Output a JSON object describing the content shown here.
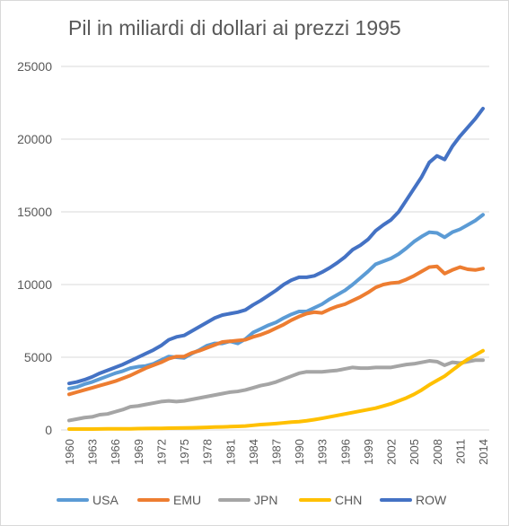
{
  "chart_data": {
    "type": "line",
    "title": "Pil in miliardi di dollari ai prezzi 1995",
    "xlabel": "",
    "ylabel": "",
    "ylim": [
      0,
      25000
    ],
    "yticks": [
      "0",
      "5000",
      "10000",
      "15000",
      "20000",
      "25000"
    ],
    "xticks": [
      "1960",
      "1963",
      "1966",
      "1969",
      "1972",
      "1975",
      "1978",
      "1981",
      "1984",
      "1987",
      "1990",
      "1993",
      "1996",
      "1999",
      "2002",
      "2005",
      "2008",
      "2011",
      "2014"
    ],
    "grid": "horizontal",
    "legend_position": "bottom",
    "x": [
      1960,
      1961,
      1962,
      1963,
      1964,
      1965,
      1966,
      1967,
      1968,
      1969,
      1970,
      1971,
      1972,
      1973,
      1974,
      1975,
      1976,
      1977,
      1978,
      1979,
      1980,
      1981,
      1982,
      1983,
      1984,
      1985,
      1986,
      1987,
      1988,
      1989,
      1990,
      1991,
      1992,
      1993,
      1994,
      1995,
      1996,
      1997,
      1998,
      1999,
      2000,
      2001,
      2002,
      2003,
      2004,
      2005,
      2006,
      2007,
      2008,
      2009,
      2010,
      2011,
      2012,
      2013,
      2014
    ],
    "series": [
      {
        "name": "USA",
        "color": "#5B9BD5",
        "values": [
          2850,
          2950,
          3150,
          3300,
          3500,
          3700,
          3900,
          4050,
          4250,
          4350,
          4400,
          4550,
          4800,
          5050,
          5000,
          4950,
          5250,
          5500,
          5800,
          5950,
          5950,
          6100,
          5950,
          6250,
          6700,
          6950,
          7200,
          7400,
          7700,
          7950,
          8150,
          8150,
          8400,
          8650,
          9000,
          9300,
          9600,
          10000,
          10450,
          10900,
          11400,
          11600,
          11800,
          12100,
          12500,
          12950,
          13300,
          13600,
          13550,
          13250,
          13600,
          13800,
          14100,
          14400,
          14800
        ]
      },
      {
        "name": "EMU",
        "color": "#ED7D31",
        "values": [
          2450,
          2600,
          2750,
          2900,
          3050,
          3200,
          3350,
          3550,
          3750,
          4000,
          4250,
          4450,
          4650,
          4900,
          5050,
          5050,
          5300,
          5450,
          5650,
          5850,
          6050,
          6100,
          6150,
          6200,
          6400,
          6550,
          6750,
          7000,
          7250,
          7550,
          7800,
          8000,
          8100,
          8050,
          8300,
          8500,
          8650,
          8900,
          9150,
          9450,
          9800,
          10000,
          10100,
          10150,
          10350,
          10600,
          10900,
          11200,
          11250,
          10750,
          11000,
          11200,
          11050,
          11000,
          11100
        ]
      },
      {
        "name": "JPN",
        "color": "#A5A5A5",
        "values": [
          650,
          750,
          850,
          900,
          1050,
          1100,
          1250,
          1400,
          1600,
          1650,
          1750,
          1850,
          1950,
          2000,
          1950,
          2000,
          2100,
          2200,
          2300,
          2400,
          2500,
          2600,
          2650,
          2750,
          2900,
          3050,
          3150,
          3300,
          3500,
          3700,
          3900,
          4000,
          4000,
          4000,
          4050,
          4100,
          4200,
          4300,
          4250,
          4250,
          4300,
          4300,
          4300,
          4400,
          4500,
          4550,
          4650,
          4750,
          4700,
          4450,
          4650,
          4600,
          4700,
          4800,
          4800
        ]
      },
      {
        "name": "CHN",
        "color": "#FFC000",
        "values": [
          60,
          60,
          60,
          60,
          70,
          80,
          80,
          80,
          80,
          90,
          100,
          110,
          110,
          120,
          130,
          140,
          150,
          160,
          180,
          200,
          210,
          230,
          250,
          270,
          320,
          370,
          400,
          440,
          490,
          540,
          570,
          630,
          710,
          800,
          900,
          1000,
          1100,
          1200,
          1300,
          1400,
          1500,
          1650,
          1800,
          2000,
          2200,
          2450,
          2750,
          3100,
          3400,
          3700,
          4100,
          4500,
          4850,
          5150,
          5450
        ]
      },
      {
        "name": "ROW",
        "color": "#4472C4",
        "values": [
          3200,
          3300,
          3450,
          3650,
          3900,
          4100,
          4300,
          4500,
          4750,
          5000,
          5250,
          5500,
          5800,
          6200,
          6400,
          6500,
          6800,
          7100,
          7400,
          7700,
          7900,
          8000,
          8100,
          8250,
          8600,
          8900,
          9250,
          9600,
          10000,
          10300,
          10500,
          10500,
          10600,
          10850,
          11150,
          11500,
          11900,
          12400,
          12700,
          13100,
          13700,
          14100,
          14450,
          15000,
          15800,
          16600,
          17400,
          18400,
          18850,
          18600,
          19500,
          20200,
          20800,
          21400,
          22100
        ]
      }
    ]
  }
}
